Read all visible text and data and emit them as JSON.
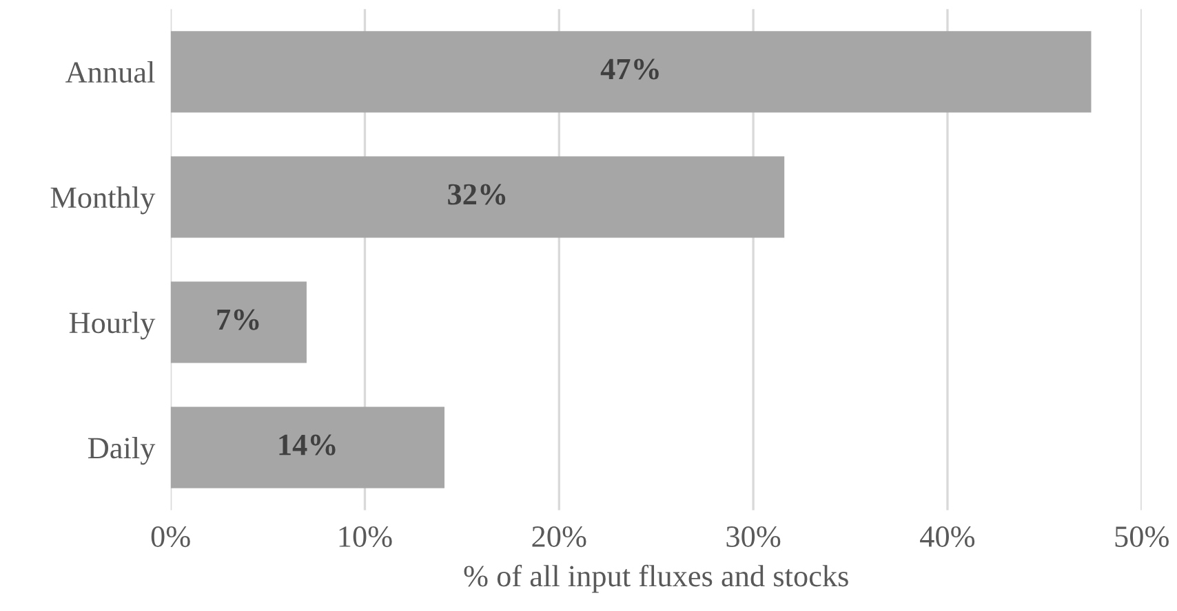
{
  "chart_data": {
    "type": "bar",
    "orientation": "horizontal",
    "xlabel": "% of all input fluxes and stocks",
    "categories": [
      "Annual",
      "Monthly",
      "Hourly",
      "Daily"
    ],
    "values": [
      47.4,
      31.6,
      7.0,
      14.1
    ],
    "value_labels": [
      "47%",
      "32%",
      "7%",
      "14%"
    ],
    "color": "#a6a6a6",
    "xlim": [
      0,
      50
    ],
    "xticks": [
      {
        "value": 0,
        "label": "0%"
      },
      {
        "value": 10,
        "label": "10%"
      },
      {
        "value": 20,
        "label": "20%"
      },
      {
        "value": 30,
        "label": "30%"
      },
      {
        "value": 40,
        "label": "40%"
      },
      {
        "value": 50,
        "label": "50%"
      }
    ],
    "grid": "x",
    "legend": false
  }
}
